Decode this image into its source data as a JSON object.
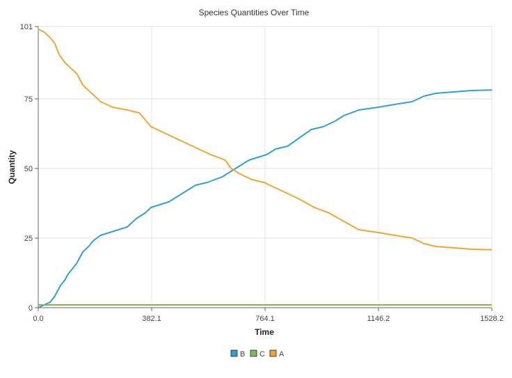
{
  "chart_data": {
    "type": "line",
    "title": "Species Quantities Over Time",
    "xlabel": "Time",
    "ylabel": "Quantity",
    "xlim": [
      0,
      1528.2
    ],
    "ylim": [
      0,
      101
    ],
    "x_ticks": [
      "0.0",
      "382.1",
      "764.1",
      "1146.2",
      "1528.2"
    ],
    "y_ticks": [
      "0",
      "25",
      "50",
      "75",
      "101"
    ],
    "grid": true,
    "legend_position": "bottom-center",
    "series": [
      {
        "name": "B",
        "color": "#2f9fd6",
        "points": [
          [
            0,
            0
          ],
          [
            20,
            1
          ],
          [
            40,
            2
          ],
          [
            55,
            4
          ],
          [
            65,
            6
          ],
          [
            75,
            8
          ],
          [
            90,
            10
          ],
          [
            100,
            12
          ],
          [
            115,
            14
          ],
          [
            130,
            16
          ],
          [
            140,
            18
          ],
          [
            150,
            20
          ],
          [
            170,
            22
          ],
          [
            185,
            24
          ],
          [
            210,
            26
          ],
          [
            240,
            27
          ],
          [
            270,
            28
          ],
          [
            300,
            29
          ],
          [
            330,
            32
          ],
          [
            360,
            34
          ],
          [
            380,
            36
          ],
          [
            410,
            37
          ],
          [
            440,
            38
          ],
          [
            470,
            40
          ],
          [
            500,
            42
          ],
          [
            530,
            44
          ],
          [
            570,
            45
          ],
          [
            620,
            47
          ],
          [
            650,
            49
          ],
          [
            680,
            51
          ],
          [
            710,
            53
          ],
          [
            740,
            54
          ],
          [
            770,
            55
          ],
          [
            800,
            57
          ],
          [
            840,
            58
          ],
          [
            880,
            61
          ],
          [
            920,
            64
          ],
          [
            960,
            65
          ],
          [
            1000,
            67
          ],
          [
            1030,
            69
          ],
          [
            1080,
            71
          ],
          [
            1146,
            72
          ],
          [
            1200,
            73
          ],
          [
            1260,
            74
          ],
          [
            1300,
            76
          ],
          [
            1340,
            77
          ],
          [
            1400,
            77.5
          ],
          [
            1460,
            78
          ],
          [
            1528.2,
            78.2
          ]
        ]
      },
      {
        "name": "C",
        "color": "#7cb855",
        "points": [
          [
            0,
            1
          ],
          [
            1528.2,
            1
          ]
        ]
      },
      {
        "name": "A",
        "color": "#f0a431",
        "points": [
          [
            0,
            100
          ],
          [
            20,
            99
          ],
          [
            40,
            97
          ],
          [
            55,
            95
          ],
          [
            70,
            91
          ],
          [
            90,
            88
          ],
          [
            110,
            86
          ],
          [
            130,
            84
          ],
          [
            150,
            80
          ],
          [
            180,
            77
          ],
          [
            210,
            74
          ],
          [
            250,
            72
          ],
          [
            300,
            71
          ],
          [
            340,
            70
          ],
          [
            380,
            65
          ],
          [
            420,
            63
          ],
          [
            460,
            61
          ],
          [
            500,
            59
          ],
          [
            540,
            57
          ],
          [
            580,
            55
          ],
          [
            630,
            53
          ],
          [
            650,
            50
          ],
          [
            680,
            48
          ],
          [
            720,
            46
          ],
          [
            760,
            45
          ],
          [
            800,
            43
          ],
          [
            840,
            41
          ],
          [
            880,
            39
          ],
          [
            930,
            36
          ],
          [
            980,
            34
          ],
          [
            1030,
            31
          ],
          [
            1080,
            28
          ],
          [
            1146,
            27
          ],
          [
            1200,
            26
          ],
          [
            1260,
            25
          ],
          [
            1300,
            23
          ],
          [
            1340,
            22
          ],
          [
            1400,
            21.5
          ],
          [
            1460,
            21
          ],
          [
            1528.2,
            20.8
          ]
        ]
      }
    ]
  }
}
